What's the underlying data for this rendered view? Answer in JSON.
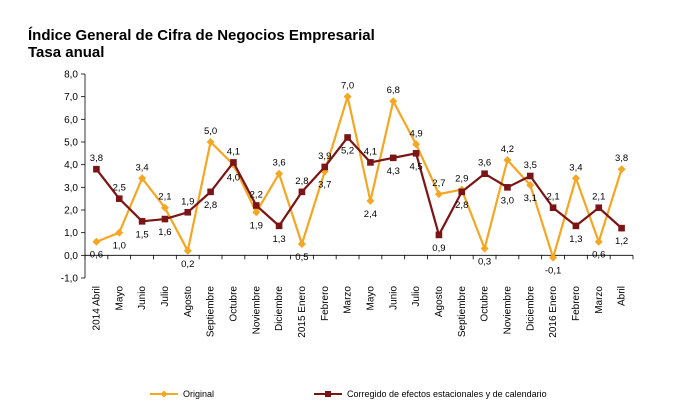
{
  "chart_data": {
    "type": "line",
    "title": "Índice General de Cifra de Negocios Empresarial",
    "subtitle": "Tasa anual",
    "xlabel": "",
    "ylabel": "",
    "ylim": [
      -1.0,
      8.0
    ],
    "yticks": [
      "-1,0",
      "0,0",
      "1,0",
      "2,0",
      "3,0",
      "4,0",
      "5,0",
      "6,0",
      "7,0",
      "8,0"
    ],
    "ytick_values": [
      -1,
      0,
      1,
      2,
      3,
      4,
      5,
      6,
      7,
      8
    ],
    "categories": [
      "2014 Abril",
      "Mayo",
      "Junio",
      "Julio",
      "Agosto",
      "Septiembre",
      "Octubre",
      "Noviembre",
      "Diciembre",
      "2015 Enero",
      "Febrero",
      "Marzo",
      "Mayo",
      "Junio",
      "Julio",
      "Agosto",
      "Septiembre",
      "Octubre",
      "Noviembre",
      "Diciembre",
      "2016 Enero",
      "Febrero",
      "Marzo",
      "Abril"
    ],
    "legend_position": "bottom",
    "series": [
      {
        "name": "Original",
        "color": "#f5a623",
        "marker": "diamond",
        "values": [
          0.6,
          1.0,
          3.4,
          2.1,
          0.2,
          5.0,
          4.0,
          1.9,
          3.6,
          0.5,
          3.7,
          7.0,
          2.4,
          6.8,
          4.9,
          2.7,
          2.9,
          0.3,
          4.2,
          3.1,
          -0.1,
          3.4,
          0.6,
          3.8
        ],
        "labels": [
          "0,6",
          "1,0",
          "3,4",
          "2,1",
          "0,2",
          "5,0",
          "4,0",
          "1,9",
          "3,6",
          "0,5",
          "3,7",
          "7,0",
          "2,4",
          "6,8",
          "4,9",
          "2,7",
          "2,9",
          "0,3",
          "4,2",
          "3,1",
          "-0,1",
          "3,4",
          "0,6",
          "3,8"
        ]
      },
      {
        "name": "Corregido de efectos estacionales y de calendario",
        "color": "#7b1414",
        "marker": "square",
        "values": [
          3.8,
          2.5,
          1.5,
          1.6,
          1.9,
          2.8,
          4.1,
          2.2,
          1.3,
          2.8,
          3.9,
          5.2,
          4.1,
          4.3,
          4.5,
          0.9,
          2.8,
          3.6,
          3.0,
          3.5,
          2.1,
          1.3,
          2.1,
          1.2
        ],
        "labels": [
          "3,8",
          "2,5",
          "1,5",
          "1,6",
          "1,9",
          "2,8",
          "4,1",
          "2,2",
          "1,3",
          "2,8",
          "3,9",
          "5,2",
          "4,1",
          "4,3",
          "4,5",
          "0,9",
          "2,8",
          "3,6",
          "3,0",
          "3,5",
          "2,1",
          "1,3",
          "2,1",
          "1,2"
        ]
      }
    ]
  }
}
